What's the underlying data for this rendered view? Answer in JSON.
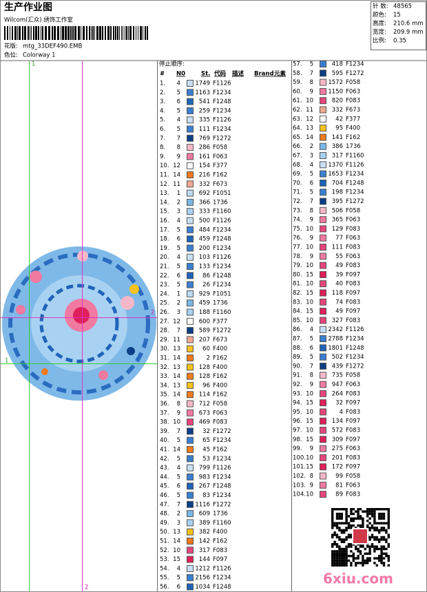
{
  "header": {
    "title": "生产作业图",
    "studio": "Wilcom(汇众) 绣饰工作室",
    "design_label": "花版:",
    "design_file": "mtg_33DEF490.EMB",
    "colorway_label": "色位:",
    "colorway": "Colorway 1"
  },
  "summary": [
    {
      "label": "针 数:",
      "value": "48565"
    },
    {
      "label": "颜色:",
      "value": "15"
    },
    {
      "label": "高度:",
      "value": "210.6 mm"
    },
    {
      "label": "宽度:",
      "value": "209.9 mm"
    },
    {
      "label": "比例:",
      "value": "0.35"
    }
  ],
  "guide_labels": {
    "top": "1",
    "left": "1",
    "right": "2",
    "bottom": "2"
  },
  "table": {
    "caption": "停止顺序:",
    "columns": [
      "#",
      "N0",
      "St.",
      "代码",
      "描述",
      "Brand",
      "元素"
    ],
    "rows": [
      [
        "1.",
        "4",
        "1749",
        "F1126"
      ],
      [
        "2.",
        "5",
        "1163",
        "F1234"
      ],
      [
        "3.",
        "6",
        "541",
        "F1248"
      ],
      [
        "4.",
        "5",
        "259",
        "F1234"
      ],
      [
        "5.",
        "4",
        "335",
        "F1126"
      ],
      [
        "6.",
        "5",
        "111",
        "F1234"
      ],
      [
        "7.",
        "7",
        "769",
        "F1272"
      ],
      [
        "8.",
        "8",
        "286",
        "F058"
      ],
      [
        "9.",
        "9",
        "161",
        "F063"
      ],
      [
        "10.",
        "12",
        "154",
        "F377"
      ],
      [
        "11.",
        "14",
        "216",
        "F162"
      ],
      [
        "12.",
        "11",
        "332",
        "F673"
      ],
      [
        "13.",
        "1",
        "692",
        "F1051"
      ],
      [
        "14.",
        "2",
        "366",
        "1736"
      ],
      [
        "15.",
        "3",
        "333",
        "F1160"
      ],
      [
        "16.",
        "4",
        "500",
        "F1126"
      ],
      [
        "17.",
        "5",
        "484",
        "F1234"
      ],
      [
        "18.",
        "6",
        "459",
        "F1248"
      ],
      [
        "19.",
        "5",
        "200",
        "F1234"
      ],
      [
        "20.",
        "4",
        "103",
        "F1126"
      ],
      [
        "21.",
        "5",
        "133",
        "F1234"
      ],
      [
        "22.",
        "6",
        "86",
        "F1248"
      ],
      [
        "23.",
        "5",
        "26",
        "F1234"
      ],
      [
        "24.",
        "1",
        "929",
        "F1051"
      ],
      [
        "25.",
        "2",
        "459",
        "1736"
      ],
      [
        "26.",
        "3",
        "188",
        "F1160"
      ],
      [
        "27.",
        "12",
        "600",
        "F377"
      ],
      [
        "28.",
        "7",
        "589",
        "F1272"
      ],
      [
        "29.",
        "11",
        "207",
        "F673"
      ],
      [
        "30.",
        "13",
        "60",
        "F400"
      ],
      [
        "31.",
        "14",
        "2",
        "F162"
      ],
      [
        "32.",
        "13",
        "128",
        "F400"
      ],
      [
        "33.",
        "14",
        "128",
        "F162"
      ],
      [
        "34.",
        "13",
        "96",
        "F400"
      ],
      [
        "35.",
        "14",
        "114",
        "F162"
      ],
      [
        "36.",
        "8",
        "712",
        "F058"
      ],
      [
        "37.",
        "9",
        "673",
        "F063"
      ],
      [
        "38.",
        "10",
        "469",
        "F083"
      ],
      [
        "39.",
        "7",
        "32",
        "F1272"
      ],
      [
        "40.",
        "5",
        "65",
        "F1234"
      ],
      [
        "41.",
        "14",
        "45",
        "F162"
      ],
      [
        "42.",
        "5",
        "53",
        "F1234"
      ],
      [
        "43.",
        "4",
        "799",
        "F1126"
      ],
      [
        "44.",
        "5",
        "983",
        "F1234"
      ],
      [
        "45.",
        "6",
        "267",
        "F1248"
      ],
      [
        "46.",
        "5",
        "83",
        "F1234"
      ],
      [
        "47.",
        "7",
        "1116",
        "F1272"
      ],
      [
        "48.",
        "2",
        "609",
        "1736"
      ],
      [
        "49.",
        "3",
        "389",
        "F1160"
      ],
      [
        "50.",
        "13",
        "382",
        "F400"
      ],
      [
        "51.",
        "14",
        "142",
        "F162"
      ],
      [
        "52.",
        "10",
        "317",
        "F083"
      ],
      [
        "53.",
        "15",
        "144",
        "F097"
      ],
      [
        "54.",
        "4",
        "1212",
        "F1126"
      ],
      [
        "55.",
        "5",
        "2156",
        "F1234"
      ],
      [
        "56.",
        "6",
        "1034",
        "F1248"
      ],
      [
        "57.",
        "5",
        "418",
        "F1234"
      ],
      [
        "58.",
        "7",
        "595",
        "F1272"
      ],
      [
        "59.",
        "8",
        "1572",
        "F058"
      ],
      [
        "60.",
        "9",
        "1150",
        "F063"
      ],
      [
        "61.",
        "10",
        "820",
        "F083"
      ],
      [
        "62.",
        "11",
        "332",
        "F673"
      ],
      [
        "63.",
        "12",
        "42",
        "F377"
      ],
      [
        "64.",
        "13",
        "95",
        "F400"
      ],
      [
        "65.",
        "14",
        "141",
        "F162"
      ],
      [
        "66.",
        "2",
        "386",
        "1736"
      ],
      [
        "67.",
        "3",
        "317",
        "F1160"
      ],
      [
        "68.",
        "4",
        "1370",
        "F1126"
      ],
      [
        "69.",
        "5",
        "1653",
        "F1234"
      ],
      [
        "70.",
        "6",
        "704",
        "F1248"
      ],
      [
        "71.",
        "5",
        "198",
        "F1234"
      ],
      [
        "72.",
        "7",
        "395",
        "F1272"
      ],
      [
        "73.",
        "8",
        "506",
        "F058"
      ],
      [
        "74.",
        "9",
        "365",
        "F063"
      ],
      [
        "75.",
        "10",
        "129",
        "F083"
      ],
      [
        "76.",
        "9",
        "77",
        "F063"
      ],
      [
        "77.",
        "10",
        "111",
        "F083"
      ],
      [
        "78.",
        "9",
        "55",
        "F063"
      ],
      [
        "79.",
        "10",
        "49",
        "F083"
      ],
      [
        "80.",
        "15",
        "39",
        "F097"
      ],
      [
        "81.",
        "10",
        "40",
        "F083"
      ],
      [
        "82.",
        "15",
        "118",
        "F097"
      ],
      [
        "83.",
        "10",
        "74",
        "F083"
      ],
      [
        "84.",
        "15",
        "49",
        "F097"
      ],
      [
        "85.",
        "10",
        "327",
        "F083"
      ],
      [
        "86.",
        "4",
        "2342",
        "F1126"
      ],
      [
        "87.",
        "5",
        "2788",
        "F1234"
      ],
      [
        "88.",
        "6",
        "1801",
        "F1248"
      ],
      [
        "89.",
        "5",
        "502",
        "F1234"
      ],
      [
        "90.",
        "7",
        "439",
        "F1272"
      ],
      [
        "91.",
        "8",
        "735",
        "F058"
      ],
      [
        "92.",
        "9",
        "947",
        "F063"
      ],
      [
        "93.",
        "10",
        "264",
        "F083"
      ],
      [
        "94.",
        "15",
        "32",
        "F097"
      ],
      [
        "95.",
        "10",
        "4",
        "F083"
      ],
      [
        "96.",
        "15",
        "134",
        "F097"
      ],
      [
        "97.",
        "10",
        "572",
        "F083"
      ],
      [
        "98.",
        "15",
        "309",
        "F097"
      ],
      [
        "99.",
        "9",
        "275",
        "F063"
      ],
      [
        "100.",
        "10",
        "201",
        "F083"
      ],
      [
        "101.",
        "15",
        "172",
        "F097"
      ],
      [
        "102.",
        "8",
        "99",
        "F058"
      ],
      [
        "103.",
        "9",
        "81",
        "F063"
      ],
      [
        "104.",
        "10",
        "89",
        "F083"
      ]
    ]
  },
  "needle_colors": {
    "1": "#bcd9ef",
    "2": "#7ab7e6",
    "3": "#a9d2f2",
    "4": "#c8e0f5",
    "5": "#3a7fd0",
    "6": "#1f64b8",
    "7": "#0c3f86",
    "8": "#f6b8c8",
    "9": "#f07aa0",
    "10": "#e8457a",
    "11": "#f0a890",
    "12": "#ffffff",
    "13": "#f7c21c",
    "14": "#f07a1c",
    "15": "#e0205a"
  },
  "watermark": "6xiu.com"
}
